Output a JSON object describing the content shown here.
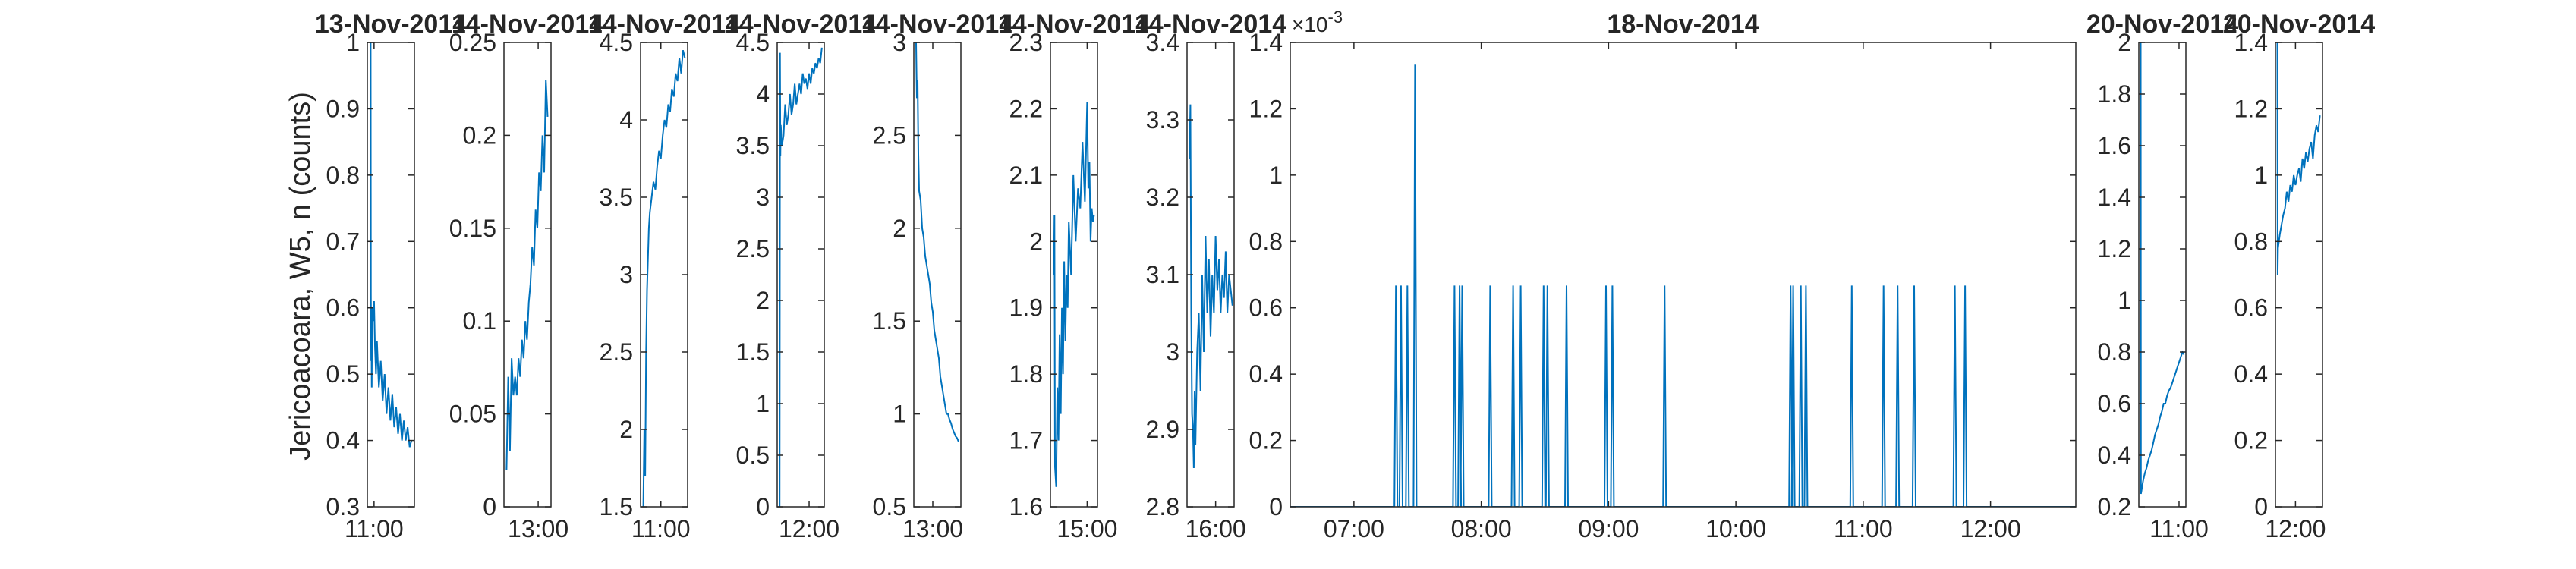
{
  "chart_data": {
    "type": "line",
    "ylabel": "Jericoacoara, W5, n (counts)",
    "line_color": "#0072BD",
    "grid": false,
    "panels": [
      {
        "title": "13-Nov-2014",
        "ylim": [
          0.3,
          1
        ],
        "yticks": [
          0.3,
          0.4,
          0.5,
          0.6,
          0.7,
          0.8,
          0.9,
          1
        ],
        "yticklabels": [
          "0.3",
          "0.4",
          "0.5",
          "0.6",
          "0.7",
          "0.8",
          "0.9",
          "1"
        ],
        "xlim": [
          10.93,
          11.42
        ],
        "xticks": [
          11.0
        ],
        "xticklabels": [
          "11:00"
        ],
        "x": [
          10.96,
          10.965,
          10.967,
          10.97,
          10.973,
          10.976,
          10.98,
          10.99,
          11.0,
          11.01,
          11.02,
          11.03,
          11.05,
          11.07,
          11.09,
          11.11,
          11.13,
          11.15,
          11.17,
          11.19,
          11.21,
          11.23,
          11.25,
          11.27,
          11.29,
          11.31,
          11.33,
          11.35,
          11.37,
          11.39
        ],
        "y": [
          1.0,
          1.0,
          0.62,
          0.52,
          0.56,
          0.48,
          0.6,
          0.58,
          0.61,
          0.54,
          0.5,
          0.55,
          0.48,
          0.52,
          0.46,
          0.5,
          0.44,
          0.48,
          0.43,
          0.47,
          0.42,
          0.45,
          0.41,
          0.44,
          0.4,
          0.43,
          0.4,
          0.42,
          0.39,
          0.4
        ]
      },
      {
        "title": "14-Nov-2014",
        "ylim": [
          0,
          0.25
        ],
        "yticks": [
          0,
          0.05,
          0.1,
          0.15,
          0.2,
          0.25
        ],
        "yticklabels": [
          "0",
          "0.05",
          "0.1",
          "0.15",
          "0.2",
          "0.25"
        ],
        "xlim": [
          12.6,
          13.15
        ],
        "xticks": [
          13.0
        ],
        "xticklabels": [
          "13:00"
        ],
        "x": [
          12.63,
          12.65,
          12.67,
          12.69,
          12.71,
          12.73,
          12.75,
          12.77,
          12.79,
          12.81,
          12.83,
          12.85,
          12.87,
          12.89,
          12.91,
          12.93,
          12.95,
          12.97,
          12.99,
          13.01,
          13.03,
          13.05,
          13.07,
          13.09,
          13.11
        ],
        "y": [
          0.02,
          0.07,
          0.03,
          0.08,
          0.06,
          0.07,
          0.06,
          0.08,
          0.07,
          0.09,
          0.08,
          0.1,
          0.09,
          0.11,
          0.12,
          0.14,
          0.13,
          0.16,
          0.15,
          0.18,
          0.17,
          0.2,
          0.18,
          0.23,
          0.21
        ]
      },
      {
        "title": "14-Nov-2014",
        "ylim": [
          1.5,
          4.5
        ],
        "yticks": [
          1.5,
          2,
          2.5,
          3,
          3.5,
          4,
          4.5
        ],
        "yticklabels": [
          "1.5",
          "2",
          "2.5",
          "3",
          "3.5",
          "4",
          "4.5"
        ],
        "xlim": [
          10.78,
          11.29
        ],
        "xticks": [
          11.0
        ],
        "xticklabels": [
          "11:00"
        ],
        "x": [
          10.81,
          10.82,
          10.83,
          10.84,
          10.85,
          10.86,
          10.87,
          10.88,
          10.9,
          10.92,
          10.94,
          10.96,
          10.98,
          11.0,
          11.02,
          11.04,
          11.06,
          11.08,
          11.1,
          11.12,
          11.14,
          11.16,
          11.18,
          11.2,
          11.22,
          11.24,
          11.26
        ],
        "y": [
          1.5,
          2.0,
          1.7,
          2.5,
          2.9,
          3.1,
          3.3,
          3.4,
          3.5,
          3.6,
          3.55,
          3.7,
          3.8,
          3.75,
          3.9,
          4.0,
          3.95,
          4.1,
          4.05,
          4.2,
          4.15,
          4.3,
          4.25,
          4.4,
          4.3,
          4.45,
          4.4
        ]
      },
      {
        "title": "14-Nov-2014",
        "ylim": [
          0,
          4.5
        ],
        "yticks": [
          0,
          0.5,
          1,
          1.5,
          2,
          2.5,
          3,
          3.5,
          4,
          4.5
        ],
        "yticklabels": [
          "0",
          "0.5",
          "1",
          "1.5",
          "2",
          "2.5",
          "3",
          "3.5",
          "4",
          "4.5"
        ],
        "xlim": [
          11.6,
          12.19
        ],
        "xticks": [
          12.0
        ],
        "xticklabels": [
          "12:00"
        ],
        "x": [
          11.63,
          11.635,
          11.64,
          11.645,
          11.66,
          11.68,
          11.7,
          11.72,
          11.74,
          11.76,
          11.78,
          11.8,
          11.82,
          11.84,
          11.86,
          11.88,
          11.9,
          11.92,
          11.94,
          11.96,
          11.98,
          12.0,
          12.02,
          12.04,
          12.06,
          12.08,
          12.1,
          12.12,
          12.14,
          12.16
        ],
        "y": [
          0.0,
          4.4,
          3.4,
          3.7,
          3.5,
          3.6,
          3.9,
          3.7,
          3.8,
          4.0,
          3.8,
          3.9,
          4.1,
          3.9,
          4.0,
          4.1,
          4.0,
          4.2,
          4.1,
          4.15,
          4.05,
          4.2,
          4.1,
          4.25,
          4.2,
          4.3,
          4.25,
          4.35,
          4.3,
          4.45
        ]
      },
      {
        "title": "14-Nov-2014",
        "ylim": [
          0.5,
          3
        ],
        "yticks": [
          0.5,
          1,
          1.5,
          2,
          2.5,
          3
        ],
        "yticklabels": [
          "0.5",
          "1",
          "1.5",
          "2",
          "2.5",
          "3"
        ],
        "xlim": [
          12.75,
          13.37
        ],
        "xticks": [
          13.0
        ],
        "xticklabels": [
          "13:00"
        ],
        "x": [
          12.78,
          12.79,
          12.8,
          12.81,
          12.82,
          12.84,
          12.86,
          12.88,
          12.9,
          12.92,
          12.94,
          12.96,
          12.98,
          13.0,
          13.02,
          13.04,
          13.06,
          13.08,
          13.1,
          13.12,
          13.14,
          13.16,
          13.18,
          13.2,
          13.22,
          13.24,
          13.26,
          13.28,
          13.3,
          13.32,
          13.34
        ],
        "y": [
          3.0,
          2.7,
          2.8,
          2.4,
          2.2,
          2.15,
          2.0,
          1.95,
          1.85,
          1.8,
          1.75,
          1.7,
          1.6,
          1.55,
          1.45,
          1.4,
          1.35,
          1.3,
          1.2,
          1.15,
          1.1,
          1.05,
          1.0,
          1.0,
          0.97,
          0.95,
          0.92,
          0.9,
          0.88,
          0.87,
          0.85
        ]
      },
      {
        "title": "14-Nov-2014",
        "ylim": [
          1.6,
          2.3
        ],
        "yticks": [
          1.6,
          1.7,
          1.8,
          1.9,
          2,
          2.1,
          2.2,
          2.3
        ],
        "yticklabels": [
          "1.6",
          "1.7",
          "1.8",
          "1.9",
          "2",
          "2.1",
          "2.2",
          "2.3"
        ],
        "xlim": [
          14.68,
          15.09
        ],
        "xticks": [
          15.0
        ],
        "xticklabels": [
          "15:00"
        ],
        "x": [
          14.71,
          14.715,
          14.72,
          14.73,
          14.74,
          14.75,
          14.76,
          14.77,
          14.78,
          14.79,
          14.8,
          14.81,
          14.82,
          14.83,
          14.84,
          14.86,
          14.88,
          14.9,
          14.92,
          14.94,
          14.96,
          14.98,
          15.0,
          15.01,
          15.02,
          15.03,
          15.04,
          15.05,
          15.06
        ],
        "y": [
          1.95,
          2.04,
          1.66,
          1.63,
          1.78,
          1.7,
          1.86,
          1.74,
          1.9,
          1.8,
          1.97,
          1.85,
          1.95,
          1.9,
          2.03,
          1.95,
          2.1,
          2.0,
          2.08,
          2.05,
          2.15,
          2.06,
          2.21,
          2.08,
          2.12,
          2.0,
          2.05,
          2.03,
          2.04
        ]
      },
      {
        "title": "14-Nov-2014",
        "ylim": [
          2.8,
          3.4
        ],
        "yticks": [
          2.8,
          2.9,
          3,
          3.1,
          3.2,
          3.3,
          3.4
        ],
        "yticklabels": [
          "2.8",
          "2.9",
          "3",
          "3.1",
          "3.2",
          "3.3",
          "3.4"
        ],
        "xlim": [
          15.66,
          16.22
        ],
        "xticks": [
          16.0
        ],
        "xticklabels": [
          "16:00"
        ],
        "x": [
          15.69,
          15.7,
          15.71,
          15.72,
          15.73,
          15.74,
          15.75,
          15.76,
          15.78,
          15.8,
          15.82,
          15.84,
          15.86,
          15.88,
          15.9,
          15.92,
          15.94,
          15.96,
          15.98,
          16.0,
          16.02,
          16.04,
          16.06,
          16.08,
          16.1,
          16.12,
          16.14,
          16.16,
          16.18,
          16.2
        ],
        "y": [
          3.25,
          3.32,
          3.05,
          2.92,
          2.9,
          2.85,
          2.95,
          2.88,
          3.0,
          3.05,
          2.95,
          3.1,
          3.0,
          3.15,
          3.05,
          3.12,
          3.02,
          3.1,
          3.05,
          3.15,
          3.08,
          3.12,
          3.05,
          3.1,
          3.07,
          3.13,
          3.05,
          3.1,
          3.08,
          3.06
        ]
      },
      {
        "title": "18-Nov-2014",
        "ylim": [
          0,
          1.4
        ],
        "yticks": [
          0,
          0.2,
          0.4,
          0.6,
          0.8,
          1,
          1.2,
          1.4
        ],
        "yticklabels": [
          "0",
          "0.2",
          "0.4",
          "0.6",
          "0.8",
          "1",
          "1.2",
          "1.4"
        ],
        "yexponent": "×10",
        "yexponent_power": "-3",
        "xlim": [
          6.5,
          12.67
        ],
        "xticks": [
          7,
          8,
          9,
          10,
          11,
          12
        ],
        "xticklabels": [
          "07:00",
          "08:00",
          "09:00",
          "10:00",
          "11:00",
          "12:00"
        ],
        "spikes_x": [
          7.33,
          7.37,
          7.42,
          7.48,
          7.79,
          7.83,
          7.85,
          8.07,
          8.25,
          8.31,
          8.49,
          8.52,
          8.67,
          8.98,
          9.03,
          9.44,
          10.43,
          10.45,
          10.51,
          10.55,
          10.91,
          11.16,
          11.27,
          11.4,
          11.72,
          11.8
        ],
        "spikes_y": [
          0.667,
          0.667,
          0.667,
          1.333,
          0.667,
          0.667,
          0.667,
          0.667,
          0.667,
          0.667,
          0.667,
          0.667,
          0.667,
          0.667,
          0.667,
          0.667,
          0.667,
          0.667,
          0.667,
          0.667,
          0.667,
          0.667,
          0.667,
          0.667,
          0.667,
          0.667
        ]
      },
      {
        "title": "20-Nov-2014",
        "ylim": [
          0.2,
          2
        ],
        "yticks": [
          0.2,
          0.4,
          0.6,
          0.8,
          1,
          1.2,
          1.4,
          1.6,
          1.8,
          2
        ],
        "yticklabels": [
          "0.2",
          "0.4",
          "0.6",
          "0.8",
          "1",
          "1.2",
          "1.4",
          "1.6",
          "1.8",
          "2"
        ],
        "xlim": [
          10.53,
          11.08
        ],
        "xticks": [
          11.0
        ],
        "xticklabels": [
          "11:00"
        ],
        "x": [
          10.55,
          10.552,
          10.555,
          10.56,
          10.58,
          10.6,
          10.62,
          10.64,
          10.66,
          10.68,
          10.7,
          10.72,
          10.74,
          10.76,
          10.78,
          10.8,
          10.82,
          10.84,
          10.86,
          10.88,
          10.9,
          10.92,
          10.94,
          10.96,
          10.98,
          11.0,
          11.02,
          11.04,
          11.06
        ],
        "y": [
          2.0,
          2.0,
          0.25,
          0.26,
          0.3,
          0.33,
          0.35,
          0.38,
          0.4,
          0.42,
          0.45,
          0.48,
          0.5,
          0.52,
          0.55,
          0.57,
          0.6,
          0.6,
          0.63,
          0.65,
          0.66,
          0.68,
          0.7,
          0.72,
          0.74,
          0.76,
          0.78,
          0.8,
          0.79
        ]
      },
      {
        "title": "20-Nov-2014",
        "ylim": [
          0,
          1.4
        ],
        "yticks": [
          0,
          0.2,
          0.4,
          0.6,
          0.8,
          1,
          1.2,
          1.4
        ],
        "yticklabels": [
          "0",
          "0.2",
          "0.4",
          "0.6",
          "0.8",
          "1",
          "1.2",
          "1.4"
        ],
        "xlim": [
          11.77,
          12.31
        ],
        "xticks": [
          12.0
        ],
        "xticklabels": [
          "12:00"
        ],
        "x": [
          11.79,
          11.792,
          11.795,
          11.8,
          11.82,
          11.84,
          11.86,
          11.88,
          11.9,
          11.92,
          11.94,
          11.96,
          11.98,
          12.0,
          12.02,
          12.04,
          12.06,
          12.08,
          12.1,
          12.12,
          12.14,
          12.16,
          12.18,
          12.2,
          12.22,
          12.24,
          12.26,
          12.28
        ],
        "y": [
          1.4,
          1.4,
          0.7,
          0.78,
          0.82,
          0.85,
          0.88,
          0.9,
          0.95,
          0.92,
          0.97,
          0.95,
          1.0,
          0.97,
          1.0,
          1.02,
          0.98,
          1.05,
          1.02,
          1.07,
          1.04,
          1.08,
          1.1,
          1.05,
          1.12,
          1.15,
          1.13,
          1.18
        ]
      }
    ]
  }
}
